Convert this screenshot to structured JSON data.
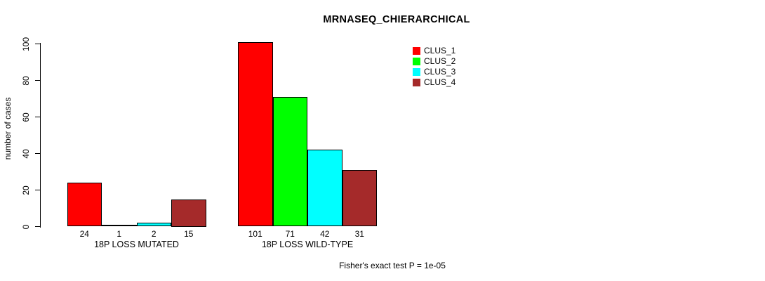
{
  "chart_data": {
    "type": "bar",
    "title": "MRNASEQ_CHIERARCHICAL",
    "ylabel": "number of cases",
    "xlabel": "",
    "ylim": [
      0,
      100
    ],
    "yticks": [
      0,
      20,
      40,
      60,
      80,
      100
    ],
    "grid": false,
    "legend_position": "top-right-inside",
    "categories": [
      "18P LOSS MUTATED",
      "18P LOSS WILD-TYPE"
    ],
    "series": [
      {
        "name": "CLUS_1",
        "color": "#FF0000",
        "values": [
          24,
          101
        ]
      },
      {
        "name": "CLUS_2",
        "color": "#00FF00",
        "values": [
          1,
          71
        ]
      },
      {
        "name": "CLUS_3",
        "color": "#00FFFF",
        "values": [
          2,
          42
        ]
      },
      {
        "name": "CLUS_4",
        "color": "#A52A2A",
        "values": [
          15,
          31
        ]
      }
    ],
    "bar_value_labels": [
      [
        24,
        1,
        2,
        15
      ],
      [
        101,
        71,
        42,
        31
      ]
    ],
    "annotation": "Fisher's exact test P = 1e-05",
    "axis_color": "#000000",
    "bar_border_color": "#000000"
  }
}
